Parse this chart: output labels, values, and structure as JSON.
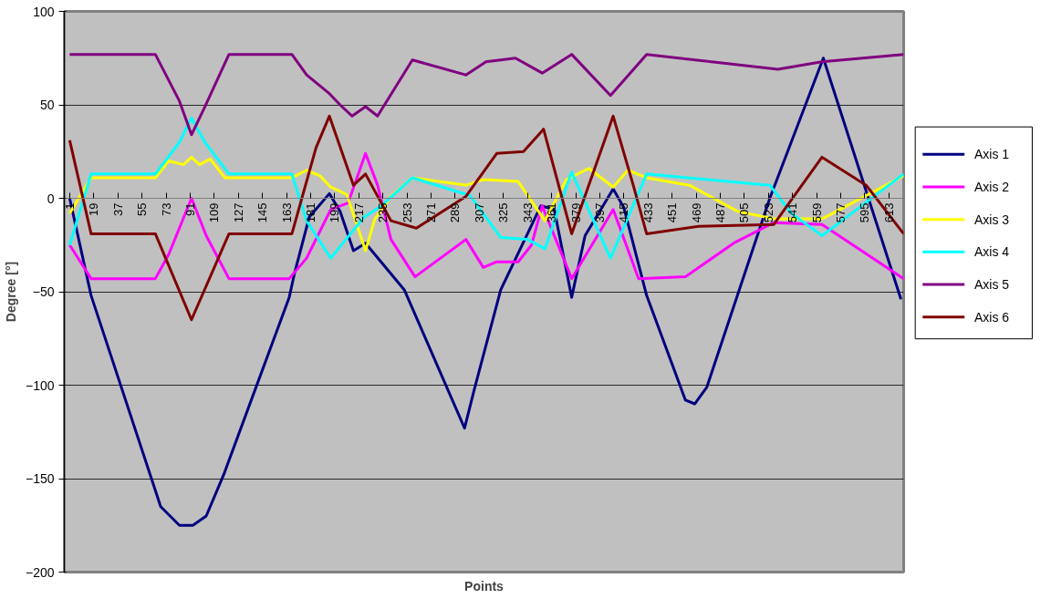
{
  "chart_data": {
    "type": "line",
    "xlabel": "Points",
    "ylabel": "Degree [°]",
    "xlim": [
      -3,
      624
    ],
    "ylim": [
      -200,
      100
    ],
    "xticks": [
      1,
      19,
      37,
      55,
      73,
      91,
      109,
      127,
      145,
      163,
      181,
      199,
      217,
      235,
      253,
      271,
      289,
      307,
      325,
      343,
      361,
      379,
      397,
      415,
      433,
      451,
      469,
      487,
      505,
      523,
      541,
      559,
      577,
      595,
      613
    ],
    "yticks": [
      -200,
      -150,
      -100,
      -50,
      0,
      50,
      100
    ],
    "grid": "y",
    "legend": "right",
    "marker": "none",
    "line_style": "solid",
    "series": [
      {
        "name": "Axis 1",
        "color": "#000080",
        "x": [
          1,
          17,
          69,
          83,
          93,
          103,
          116,
          165,
          169,
          180,
          195,
          203,
          213,
          222,
          251,
          296,
          303,
          323,
          353,
          363,
          376,
          386,
          407,
          415,
          432,
          461,
          468,
          477,
          524,
          564,
          622
        ],
        "values": [
          0,
          -52,
          -165,
          -175,
          -175,
          -170,
          -148,
          -53,
          -40,
          -10,
          2.5,
          -7,
          -28,
          -24,
          -49,
          -123,
          -103,
          -49,
          -4,
          -6,
          -53,
          -20,
          5,
          -5,
          -52,
          -108,
          -110,
          -101,
          0,
          75,
          -54
        ]
      },
      {
        "name": "Axis 2",
        "color": "#ff00ff",
        "x": [
          1,
          17,
          65,
          75,
          92,
          103,
          120,
          165,
          178,
          196,
          209,
          222,
          231,
          241,
          259,
          297,
          310,
          320,
          336,
          346,
          354,
          376,
          407,
          426,
          461,
          497,
          527,
          563,
          624
        ],
        "values": [
          -25,
          -43,
          -43,
          -30,
          0,
          -20,
          -43,
          -43,
          -32,
          -6,
          -2.5,
          24,
          7,
          -22,
          -42,
          -22,
          -37,
          -34,
          -34,
          -25,
          -4,
          -43,
          -6,
          -43,
          -42,
          -24,
          -13,
          -14,
          -43
        ]
      },
      {
        "name": "Axis 3",
        "color": "#ffff00",
        "x": [
          1,
          17,
          65,
          75,
          86,
          92,
          98,
          106,
          117,
          167,
          178,
          188,
          196,
          208,
          222,
          229,
          241,
          257,
          297,
          310,
          336,
          356,
          372,
          389,
          407,
          418,
          432,
          464,
          500,
          527,
          563,
          624
        ],
        "values": [
          -8,
          11,
          11,
          20,
          18,
          22,
          18,
          21,
          11,
          11,
          15,
          12,
          6,
          2,
          -28,
          -11,
          1,
          11,
          7,
          10,
          9,
          -12,
          10,
          16,
          6,
          15,
          11,
          7,
          -7,
          -11,
          -11,
          12
        ]
      },
      {
        "name": "Axis 4",
        "color": "#00ffff",
        "x": [
          1,
          17,
          65,
          83,
          92,
          102,
          120,
          167,
          178,
          196,
          221,
          234,
          257,
          300,
          323,
          343,
          356,
          376,
          405,
          432,
          524,
          540,
          563,
          624
        ],
        "values": [
          -25,
          13,
          13,
          30,
          43,
          30,
          13,
          13,
          -12,
          -32,
          -10,
          -4,
          11,
          1.5,
          -21,
          -22,
          -27,
          14,
          -32,
          13,
          7,
          -8,
          -20,
          13
        ]
      },
      {
        "name": "Axis 5",
        "color": "#800080",
        "x": [
          1,
          65,
          83,
          92,
          102,
          120,
          167,
          178,
          195,
          203,
          212,
          222,
          231,
          257,
          297,
          312,
          334,
          354,
          376,
          405,
          432,
          530,
          563,
          624
        ],
        "values": [
          77,
          77,
          52,
          34,
          49,
          77,
          77,
          66,
          56,
          50,
          44,
          49,
          44,
          74,
          66,
          73,
          75,
          67,
          77,
          55,
          77,
          69,
          73,
          77
        ]
      },
      {
        "name": "Axis 6",
        "color": "#800000",
        "x": [
          1,
          17,
          65,
          92,
          120,
          167,
          185,
          195,
          213,
          222,
          241,
          260,
          297,
          320,
          340,
          355,
          376,
          407,
          422,
          432,
          471,
          527,
          563,
          596,
          624
        ],
        "values": [
          31,
          -19,
          -19,
          -65,
          -19,
          -19,
          27,
          44,
          7,
          13,
          -12,
          -16,
          1,
          24,
          25,
          37,
          -19,
          44,
          7,
          -19,
          -15,
          -14,
          22,
          7,
          -19
        ]
      }
    ]
  }
}
